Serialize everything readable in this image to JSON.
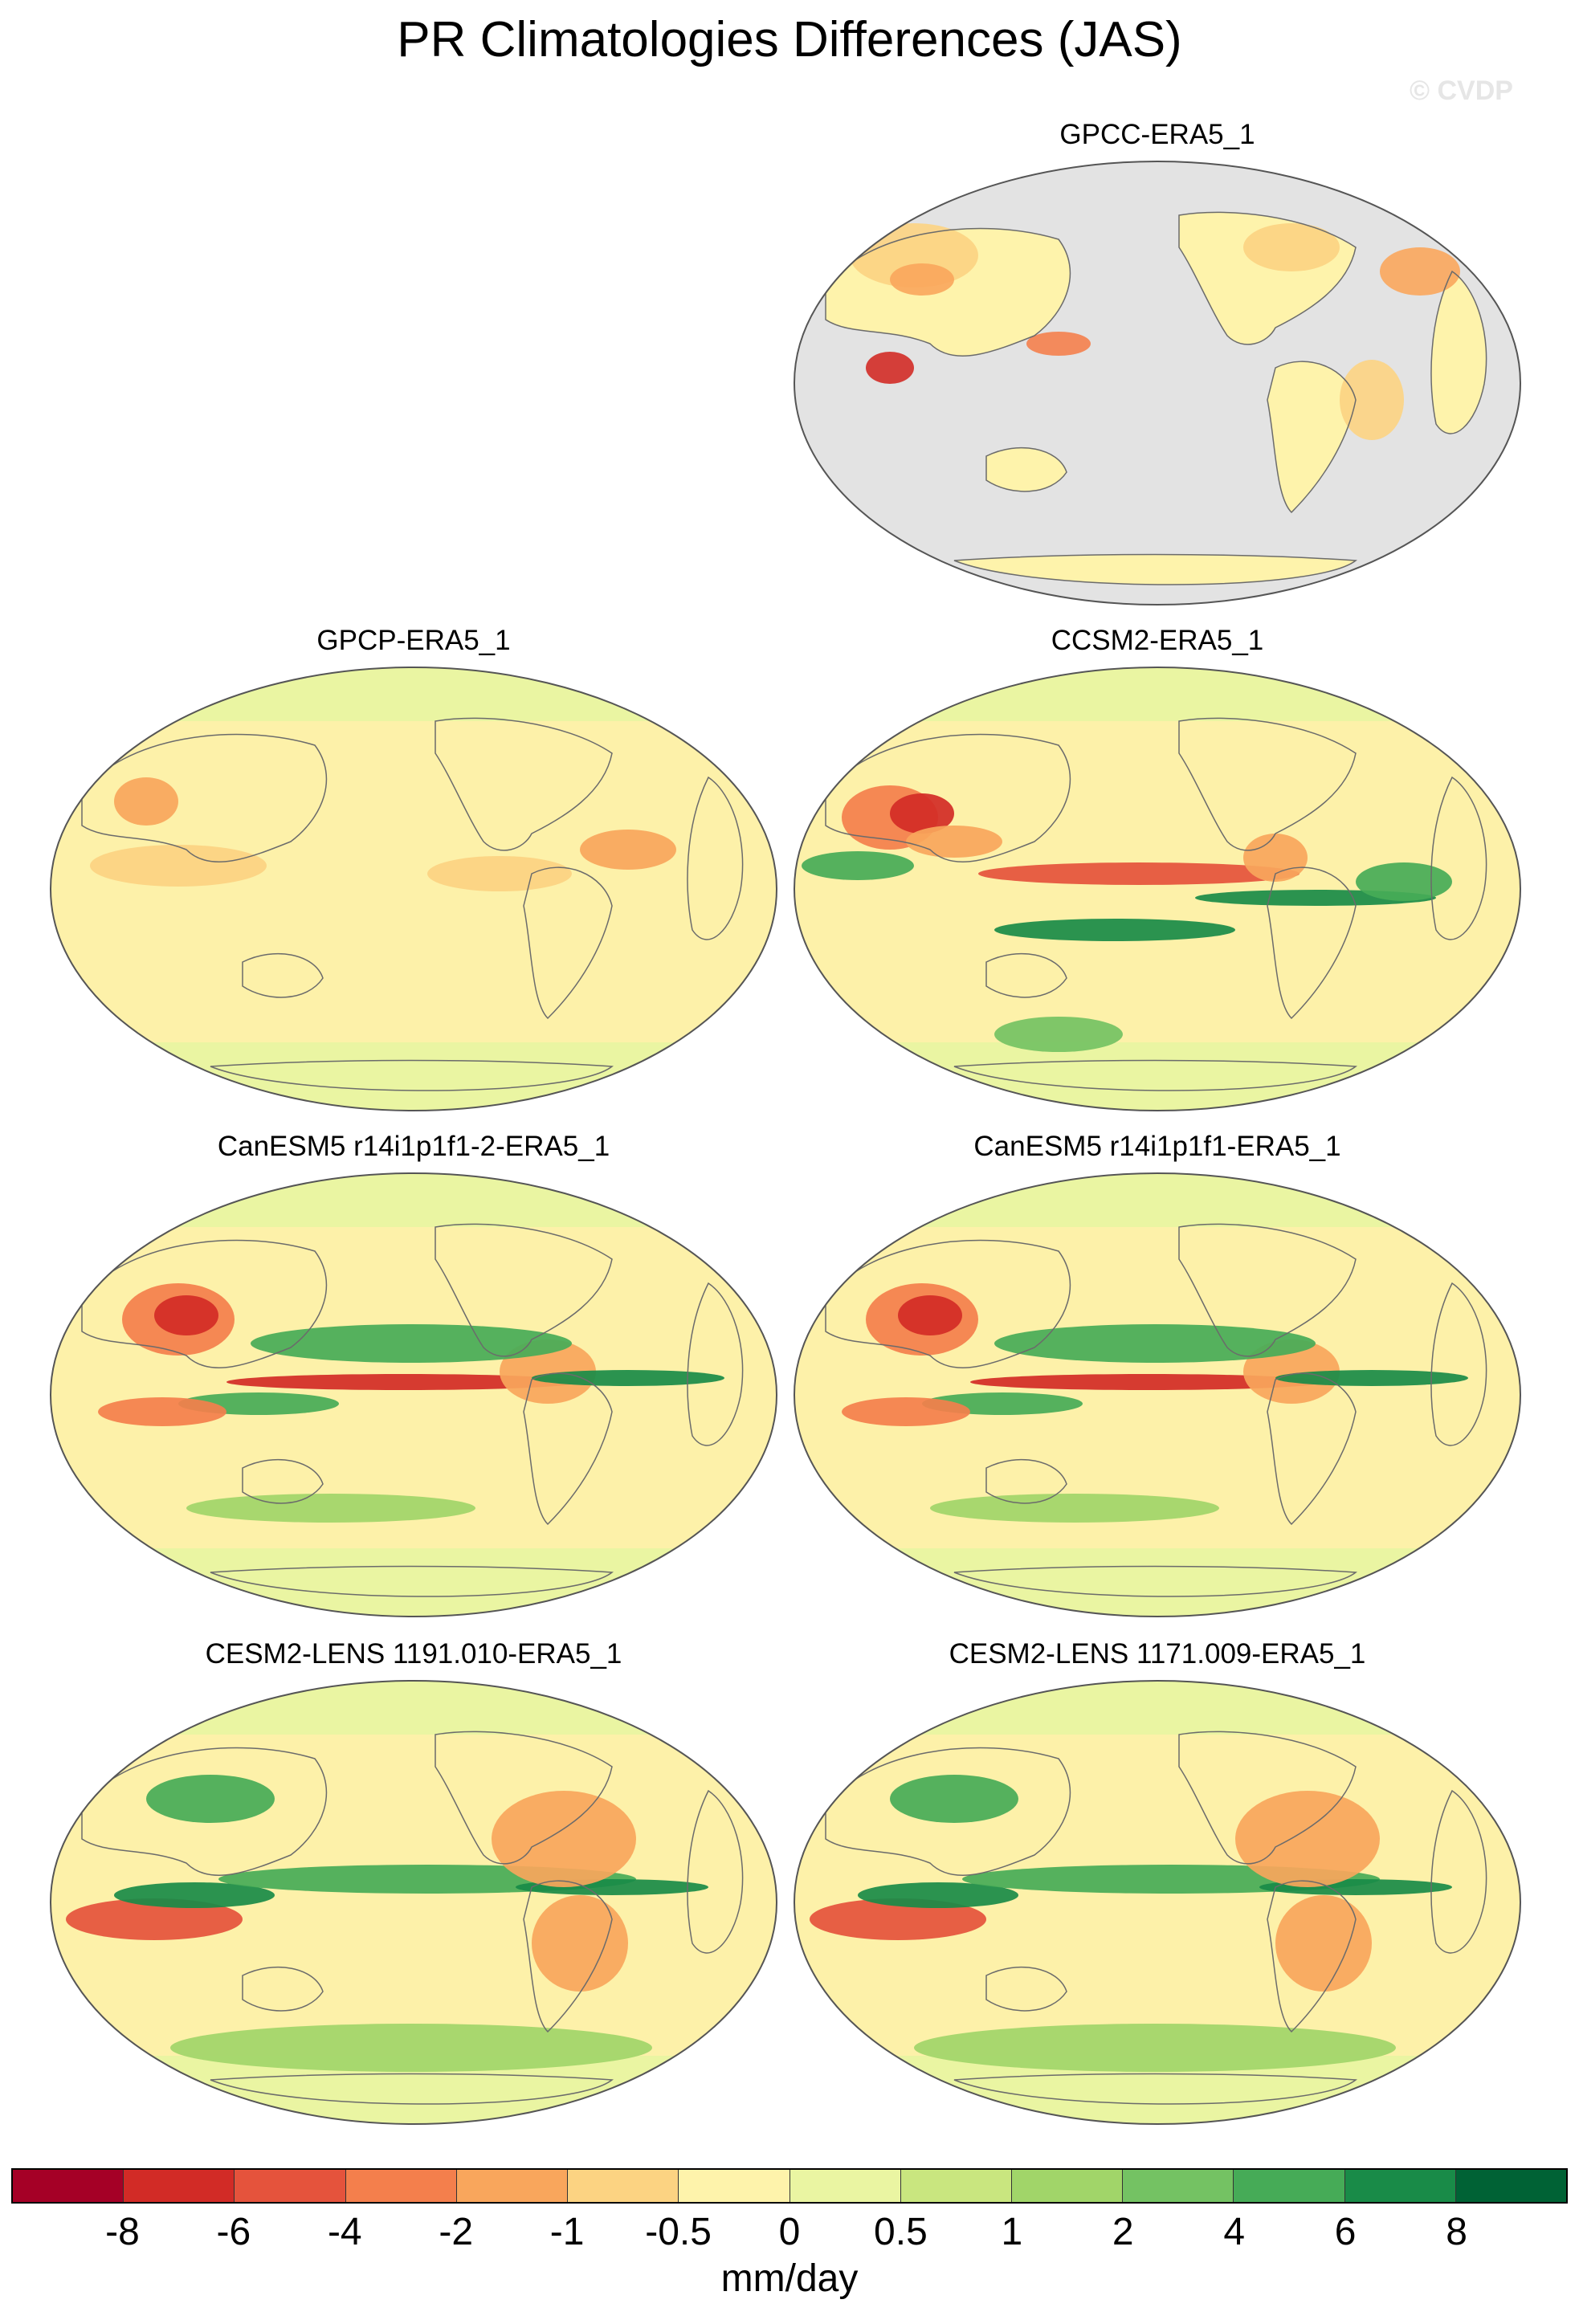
{
  "title": "PR Climatologies Differences (JAS)",
  "copyright": "© CVDP",
  "panels": [
    {
      "label": "GPCC-ERA5_1",
      "fill": "ocean-missing"
    },
    {
      "label": "GPCP-ERA5_1",
      "fill": "full"
    },
    {
      "label": "CCSM2-ERA5_1",
      "fill": "full"
    },
    {
      "label": "CanESM5 r14i1p1f1-2-ERA5_1",
      "fill": "full"
    },
    {
      "label": "CanESM5 r14i1p1f1-ERA5_1",
      "fill": "full"
    },
    {
      "label": "CESM2-LENS 1191.010-ERA5_1",
      "fill": "full"
    },
    {
      "label": "CESM2-LENS 1171.009-ERA5_1",
      "fill": "full"
    }
  ],
  "colorbar": {
    "colors": [
      "#a50026",
      "#d22b26",
      "#e5533c",
      "#f47f4c",
      "#f9a65c",
      "#fcd382",
      "#fef3ab",
      "#eaf5a2",
      "#c9e67f",
      "#a1d569",
      "#74c263",
      "#46ab57",
      "#198b48",
      "#006235"
    ],
    "ticks": [
      "-8",
      "-6",
      "-4",
      "-2",
      "-1",
      "-0.5",
      "0",
      "0.5",
      "1",
      "2",
      "4",
      "6",
      "8"
    ],
    "units": "mm/day"
  },
  "colors": {
    "missing": "#e3e3e3",
    "base": "#fdf1a9",
    "coast": "#6b6b6b"
  }
}
